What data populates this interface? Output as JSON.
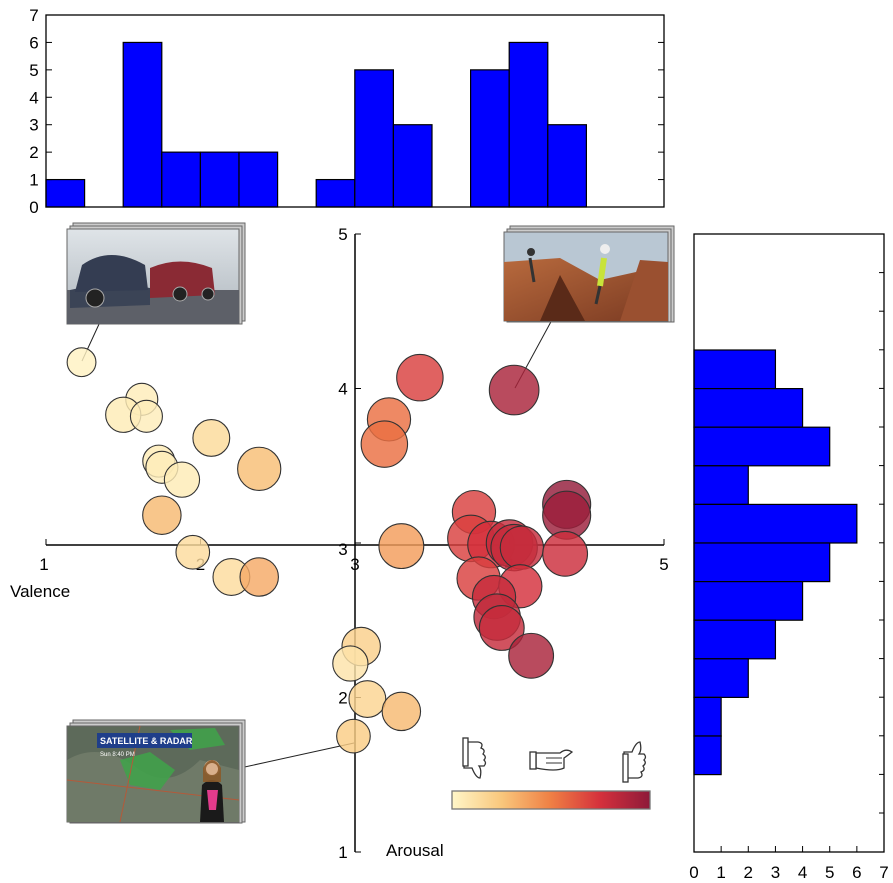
{
  "chart_data": [
    {
      "type": "bar",
      "name": "valence-histogram",
      "categories": [
        "1.0",
        "1.25",
        "1.5",
        "1.75",
        "2.0",
        "2.25",
        "2.5",
        "2.75",
        "3.0",
        "3.25",
        "3.5",
        "3.75",
        "4.0",
        "4.25",
        "4.5",
        "4.75"
      ],
      "values": [
        1,
        0,
        6,
        2,
        2,
        2,
        0,
        1,
        5,
        3,
        0,
        5,
        6,
        3,
        0,
        0
      ],
      "ylim": [
        0,
        7
      ],
      "yticks": [
        "0",
        "1",
        "2",
        "3",
        "4",
        "5",
        "6",
        "7"
      ]
    },
    {
      "type": "bar",
      "orientation": "horizontal",
      "name": "arousal-histogram",
      "bins": [
        "4.0-4.25",
        "3.75-4.0",
        "3.5-3.75",
        "3.25-3.5",
        "3.0-3.25",
        "2.75-3.0",
        "2.5-2.75",
        "2.25-2.5",
        "2.0-2.25",
        "1.75-2.0",
        "1.5-1.75"
      ],
      "values": [
        3,
        4,
        5,
        2,
        6,
        5,
        4,
        3,
        2,
        1,
        1
      ],
      "xlim": [
        0,
        7
      ],
      "xticks": [
        "0",
        "1",
        "2",
        "3",
        "4",
        "5",
        "6",
        "7"
      ]
    },
    {
      "type": "scatter",
      "name": "valence-arousal-scatter",
      "xlabel": "Valence",
      "ylabel": "Arousal",
      "xlim": [
        1,
        5
      ],
      "ylim": [
        1,
        5
      ],
      "xticks": [
        "1",
        "2",
        "3",
        "4",
        "5"
      ],
      "yticks": [
        "1",
        "2",
        "3",
        "4",
        "5"
      ],
      "color_scale": [
        "#fff6c8",
        "#f9c77c",
        "#ef7f44",
        "#d4303c",
        "#8e1a3a"
      ],
      "points": [
        {
          "x": 1.23,
          "y": 4.17,
          "c": 0.02,
          "s": 0.15
        },
        {
          "x": 1.62,
          "y": 3.93,
          "c": 0.05,
          "s": 0.25
        },
        {
          "x": 1.5,
          "y": 3.83,
          "c": 0.06,
          "s": 0.35
        },
        {
          "x": 1.65,
          "y": 3.82,
          "c": 0.05,
          "s": 0.25
        },
        {
          "x": 2.07,
          "y": 3.68,
          "c": 0.15,
          "s": 0.4
        },
        {
          "x": 2.38,
          "y": 3.48,
          "c": 0.28,
          "s": 0.6
        },
        {
          "x": 1.73,
          "y": 3.53,
          "c": 0.06,
          "s": 0.25
        },
        {
          "x": 1.75,
          "y": 3.49,
          "c": 0.05,
          "s": 0.25
        },
        {
          "x": 1.88,
          "y": 3.41,
          "c": 0.06,
          "s": 0.35
        },
        {
          "x": 1.75,
          "y": 3.18,
          "c": 0.3,
          "s": 0.45
        },
        {
          "x": 1.95,
          "y": 2.94,
          "c": 0.14,
          "s": 0.3
        },
        {
          "x": 2.2,
          "y": 2.78,
          "c": 0.14,
          "s": 0.4
        },
        {
          "x": 2.38,
          "y": 2.78,
          "c": 0.35,
          "s": 0.45
        },
        {
          "x": 3.42,
          "y": 4.07,
          "c": 0.7,
          "s": 0.7
        },
        {
          "x": 3.22,
          "y": 3.8,
          "c": 0.55,
          "s": 0.6
        },
        {
          "x": 3.19,
          "y": 3.64,
          "c": 0.55,
          "s": 0.7
        },
        {
          "x": 4.03,
          "y": 3.99,
          "c": 0.9,
          "s": 0.8
        },
        {
          "x": 3.77,
          "y": 3.2,
          "c": 0.7,
          "s": 0.6
        },
        {
          "x": 3.75,
          "y": 3.03,
          "c": 0.7,
          "s": 0.7
        },
        {
          "x": 3.88,
          "y": 2.99,
          "c": 0.75,
          "s": 0.7
        },
        {
          "x": 4.0,
          "y": 3.0,
          "c": 0.8,
          "s": 0.7
        },
        {
          "x": 4.03,
          "y": 2.97,
          "c": 0.8,
          "s": 0.7
        },
        {
          "x": 4.08,
          "y": 2.97,
          "c": 0.8,
          "s": 0.6
        },
        {
          "x": 4.37,
          "y": 3.25,
          "c": 0.98,
          "s": 0.75
        },
        {
          "x": 4.37,
          "y": 3.18,
          "c": 0.95,
          "s": 0.75
        },
        {
          "x": 4.36,
          "y": 2.93,
          "c": 0.78,
          "s": 0.65
        },
        {
          "x": 3.3,
          "y": 2.98,
          "c": 0.4,
          "s": 0.65
        },
        {
          "x": 3.8,
          "y": 2.77,
          "c": 0.7,
          "s": 0.6
        },
        {
          "x": 4.07,
          "y": 2.72,
          "c": 0.75,
          "s": 0.6
        },
        {
          "x": 3.9,
          "y": 2.65,
          "c": 0.8,
          "s": 0.6
        },
        {
          "x": 3.92,
          "y": 2.52,
          "c": 0.82,
          "s": 0.7
        },
        {
          "x": 3.95,
          "y": 2.45,
          "c": 0.8,
          "s": 0.65
        },
        {
          "x": 4.14,
          "y": 2.27,
          "c": 0.9,
          "s": 0.65
        },
        {
          "x": 3.04,
          "y": 2.33,
          "c": 0.2,
          "s": 0.45
        },
        {
          "x": 2.97,
          "y": 2.22,
          "c": 0.1,
          "s": 0.35
        },
        {
          "x": 3.08,
          "y": 1.99,
          "c": 0.18,
          "s": 0.4
        },
        {
          "x": 3.3,
          "y": 1.91,
          "c": 0.3,
          "s": 0.45
        },
        {
          "x": 2.99,
          "y": 1.75,
          "c": 0.22,
          "s": 0.3
        }
      ]
    }
  ],
  "thumbnails": [
    {
      "name": "car-crash-thumbnail"
    },
    {
      "name": "climbing-thumbnail"
    },
    {
      "name": "weather-report-thumbnail",
      "lines": [
        "SATELLITE & RADAR",
        "Sun 8:40 PM"
      ]
    }
  ],
  "legend_icons": [
    "thumbs-down-icon",
    "thumbs-sideways-icon",
    "thumbs-up-icon"
  ]
}
